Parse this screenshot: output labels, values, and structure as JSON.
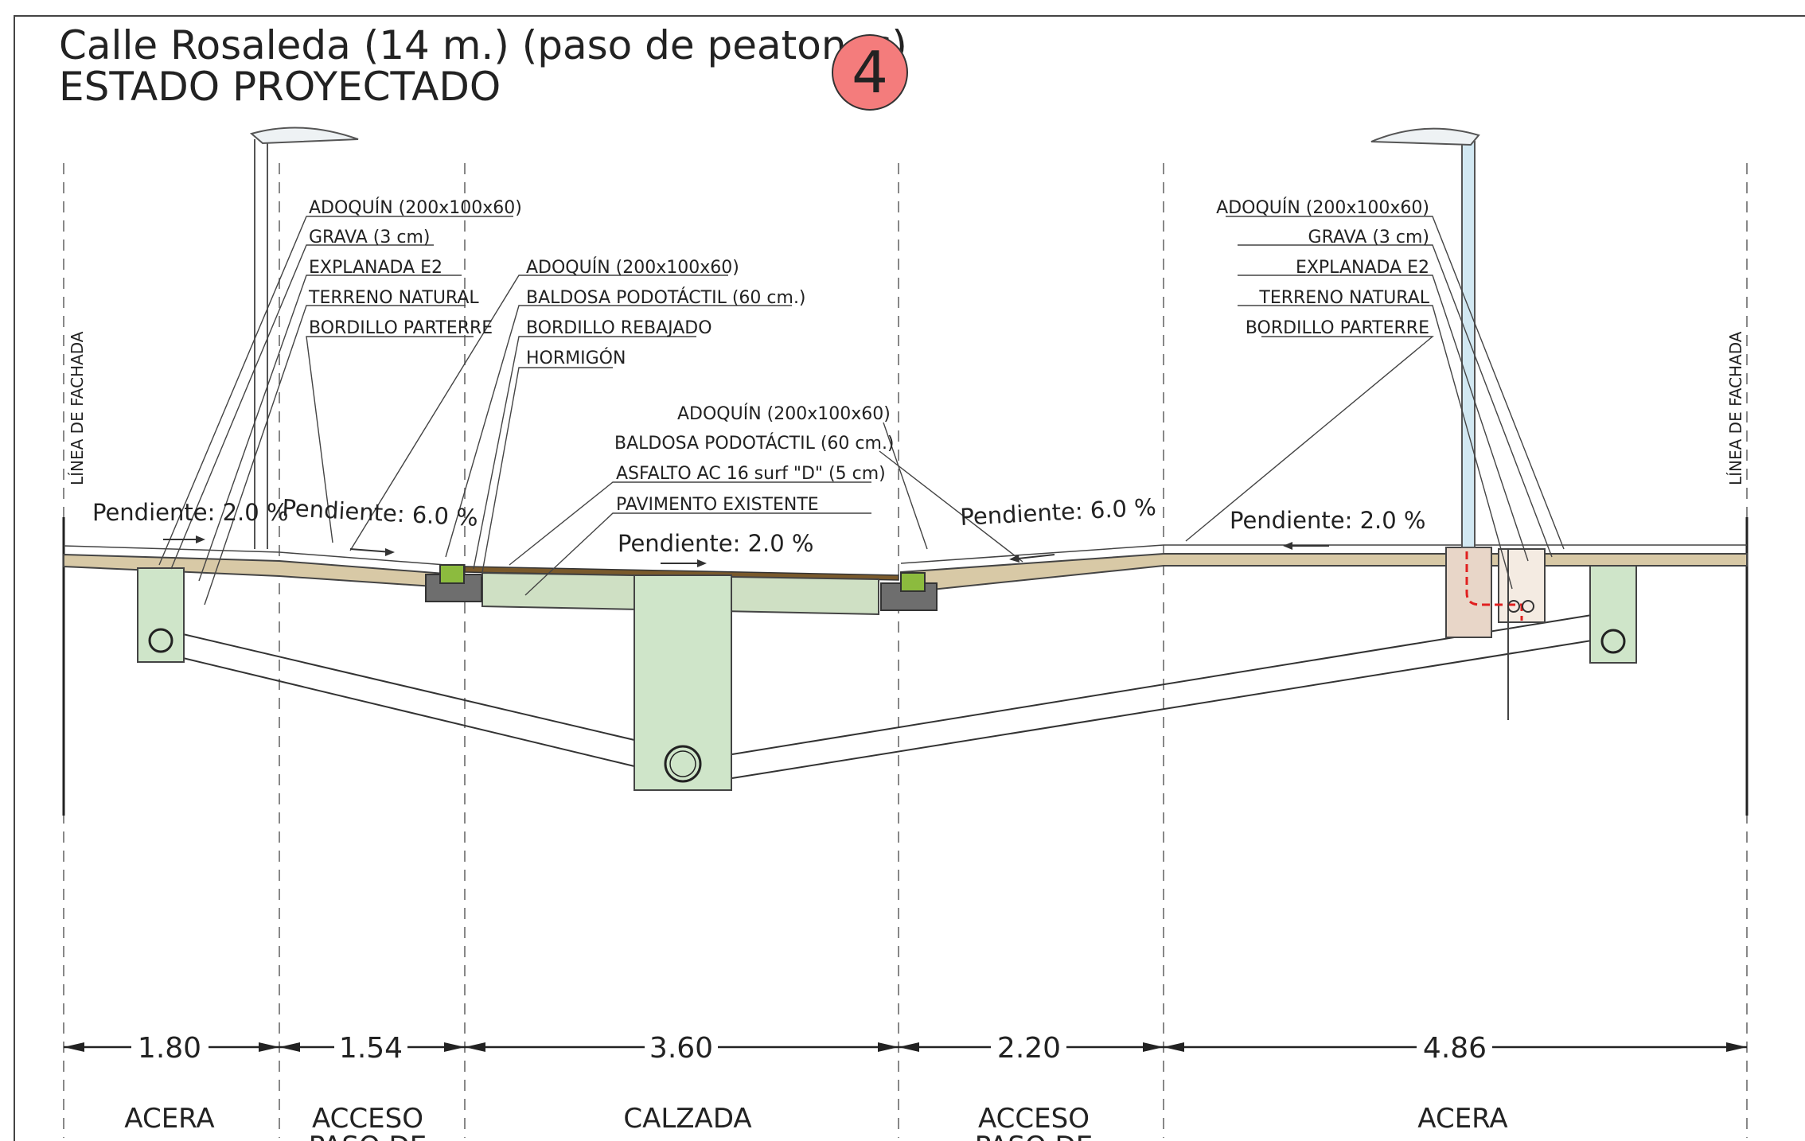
{
  "title": {
    "line1": "Calle  Rosaleda  (14 m.) (paso de peatones)",
    "line2": "ESTADO  PROYECTADO",
    "badge": "4",
    "badge_color": "#f47c7c"
  },
  "facade_label": "LÍNEA  DE  FACHADA",
  "labels_left": [
    "ADOQUÍN  (200x100x60)",
    "GRAVA  (3 cm)",
    "EXPLANADA E2",
    "TERRENO NATURAL",
    "BORDILLO PARTERRE"
  ],
  "labels_mid": [
    "ADOQUÍN  (200x100x60)",
    "BALDOSA PODOTÁCTIL  (60 cm.)",
    "BORDILLO REBAJADO",
    "HORMIGÓN"
  ],
  "labels_center": [
    "ADOQUÍN  (200x100x60)",
    "BALDOSA PODOTÁCTIL  (60 cm.)",
    "ASFALTO  AC 16 surf \"D\"  (5 cm)",
    "PAVIMENTO  EXISTENTE"
  ],
  "labels_right": [
    "ADOQUÍN  (200x100x60)",
    "GRAVA  (3 cm)",
    "EXPLANADA E2",
    "TERRENO NATURAL",
    "BORDILLO PARTERRE"
  ],
  "slopes": [
    "Pendiente: 2.0 %",
    "Pendiente: 6.0 %",
    "Pendiente: 2.0 %",
    "Pendiente: 6.0 %",
    "Pendiente: 2.0 %"
  ],
  "dimensions": [
    "1.80",
    "1.54",
    "3.60",
    "2.20",
    "4.86"
  ],
  "zones": {
    "acera_left": "ACERA",
    "acceso_left": "ACCESO",
    "acceso_left_2": "PASO DE",
    "calzada": "CALZADA",
    "acceso_right": "ACCESO",
    "acceso_right_2": "PASO DE",
    "acera_right": "ACERA"
  },
  "colors": {
    "paving": "#d8c9a6",
    "asphalt": "#7a5a2c",
    "concrete_green": "#cfe5c9",
    "tactile": "#8cbb3e",
    "curb_gray": "#6e6e6e",
    "lamp_blue": "#d2e8f2",
    "foundation": "#e8d6c8",
    "cable_red": "#e02020"
  }
}
